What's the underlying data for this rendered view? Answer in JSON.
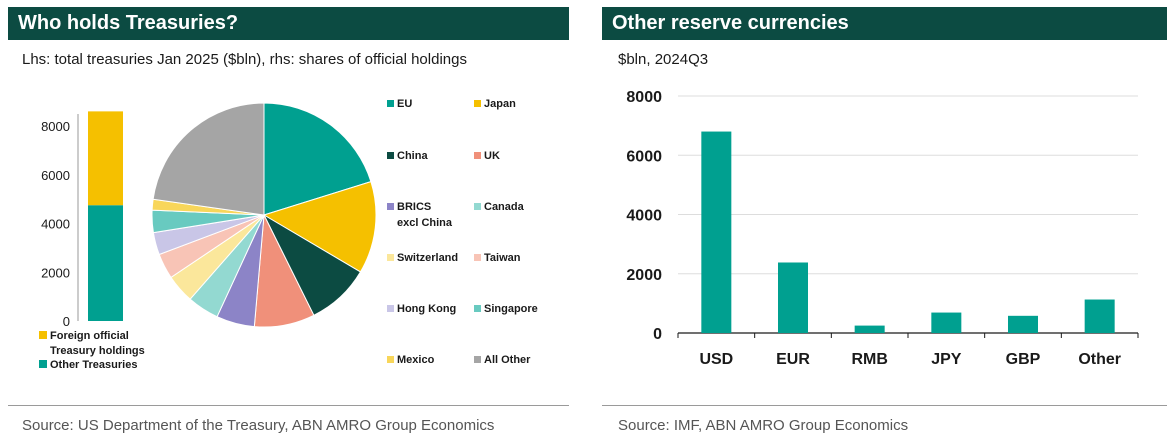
{
  "left": {
    "title": "Who holds Treasuries?",
    "subtitle": "Lhs: total treasuries Jan 2025 ($bln), rhs: shares of official holdings",
    "source": "Source:  US Department of the Treasury, ABN AMRO Group Economics"
  },
  "right": {
    "title": "Other reserve currencies",
    "subtitle": "$bln, 2024Q3",
    "source": "Source:  IMF, ABN AMRO Group Economics"
  },
  "chart_data": [
    {
      "type": "bar",
      "stacked": true,
      "title": "",
      "categories": [
        ""
      ],
      "ylim": [
        0,
        8000
      ],
      "yticks": [
        0,
        2000,
        4000,
        6000,
        8000
      ],
      "grid": false,
      "legend_position": "bottom",
      "series": [
        {
          "name": "Other Treasuries",
          "values": [
            4750
          ],
          "color": "#00a090"
        },
        {
          "name": "Foreign official Treasury holdings",
          "values": [
            3850
          ],
          "color": "#f5c000"
        }
      ]
    },
    {
      "type": "pie",
      "title": "",
      "legend_position": "right",
      "slices": [
        {
          "label": "EU",
          "value": 22.0,
          "color": "#00a090"
        },
        {
          "label": "Japan",
          "value": 14.5,
          "color": "#f5c000"
        },
        {
          "label": "China",
          "value": 10.0,
          "color": "#0c4b42"
        },
        {
          "label": "UK",
          "value": 9.5,
          "color": "#f0907a"
        },
        {
          "label": "BRICS excl China",
          "value": 6.0,
          "color": "#8c84c7"
        },
        {
          "label": "Canada",
          "value": 5.0,
          "color": "#93d9d1"
        },
        {
          "label": "Switzerland",
          "value": 4.5,
          "color": "#fbe79b"
        },
        {
          "label": "Taiwan",
          "value": 4.0,
          "color": "#f8c4b6"
        },
        {
          "label": "Hong Kong",
          "value": 3.5,
          "color": "#c9c6e7"
        },
        {
          "label": "Singapore",
          "value": 3.5,
          "color": "#68cac0"
        },
        {
          "label": "Mexico",
          "value": 1.7,
          "color": "#f8d65a"
        },
        {
          "label": "All Other",
          "value": 24.8,
          "color": "#a5a5a5"
        }
      ]
    },
    {
      "type": "bar",
      "title": "",
      "categories": [
        "USD",
        "EUR",
        "RMB",
        "JPY",
        "GBP",
        "Other"
      ],
      "values": [
        6800,
        2380,
        250,
        690,
        580,
        1130
      ],
      "ylim": [
        0,
        8000
      ],
      "yticks": [
        0,
        2000,
        4000,
        6000,
        8000
      ],
      "grid": true,
      "color": "#00a090"
    }
  ]
}
